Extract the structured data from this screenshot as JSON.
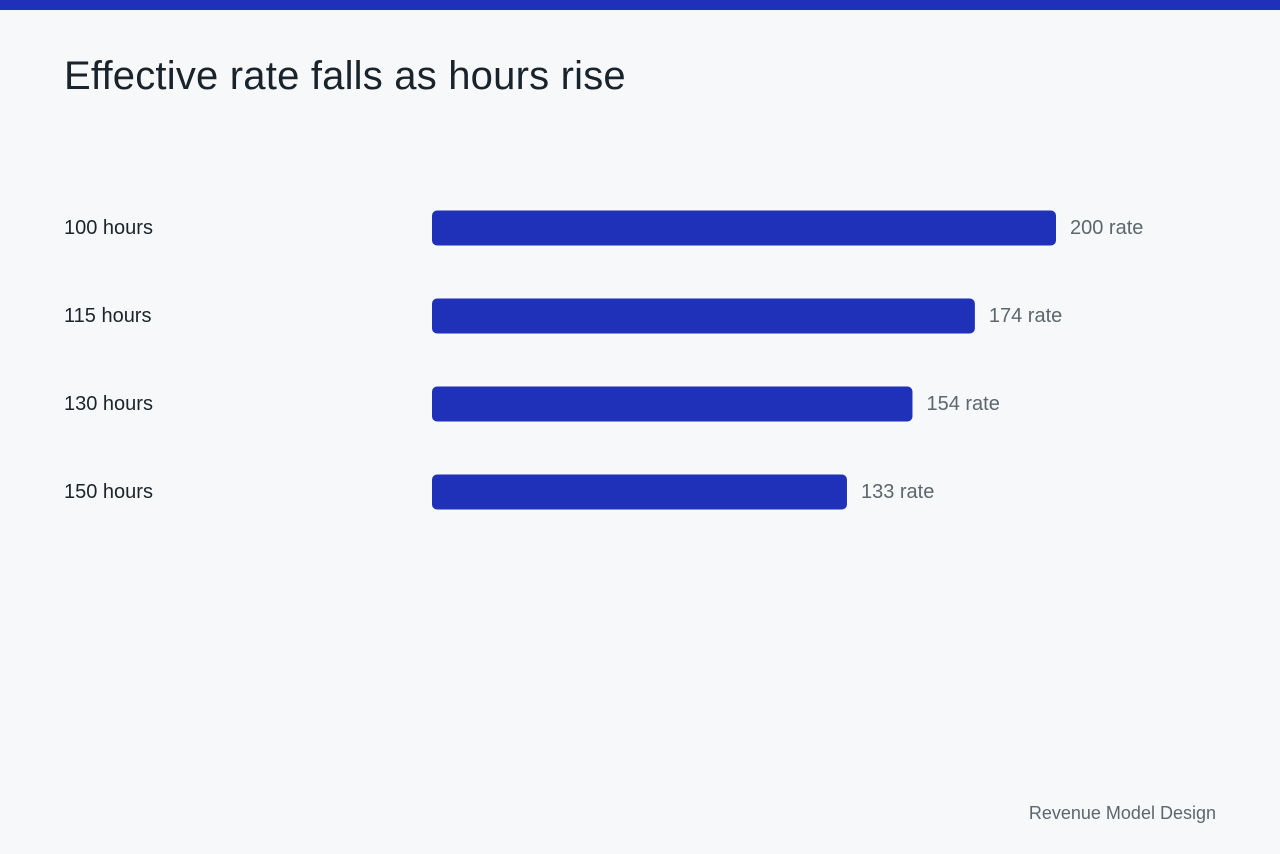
{
  "colors": {
    "accent": "#1f31b8",
    "background": "#f6f8fa",
    "text": "#1b2429",
    "muted": "#5c676d"
  },
  "page": {
    "title": "Effective rate falls as hours rise",
    "footer": "Revenue Model Design"
  },
  "chart_data": {
    "type": "bar",
    "orientation": "horizontal",
    "title": "Effective rate falls as hours rise",
    "xlabel": "",
    "ylabel": "",
    "categories": [
      "100 hours",
      "115 hours",
      "130 hours",
      "150 hours"
    ],
    "values": [
      200,
      174,
      154,
      133
    ],
    "value_labels": [
      "200 rate",
      "174 rate",
      "154 rate",
      "133 rate"
    ],
    "xlim": [
      0,
      200
    ],
    "grid": false,
    "legend": "none"
  }
}
